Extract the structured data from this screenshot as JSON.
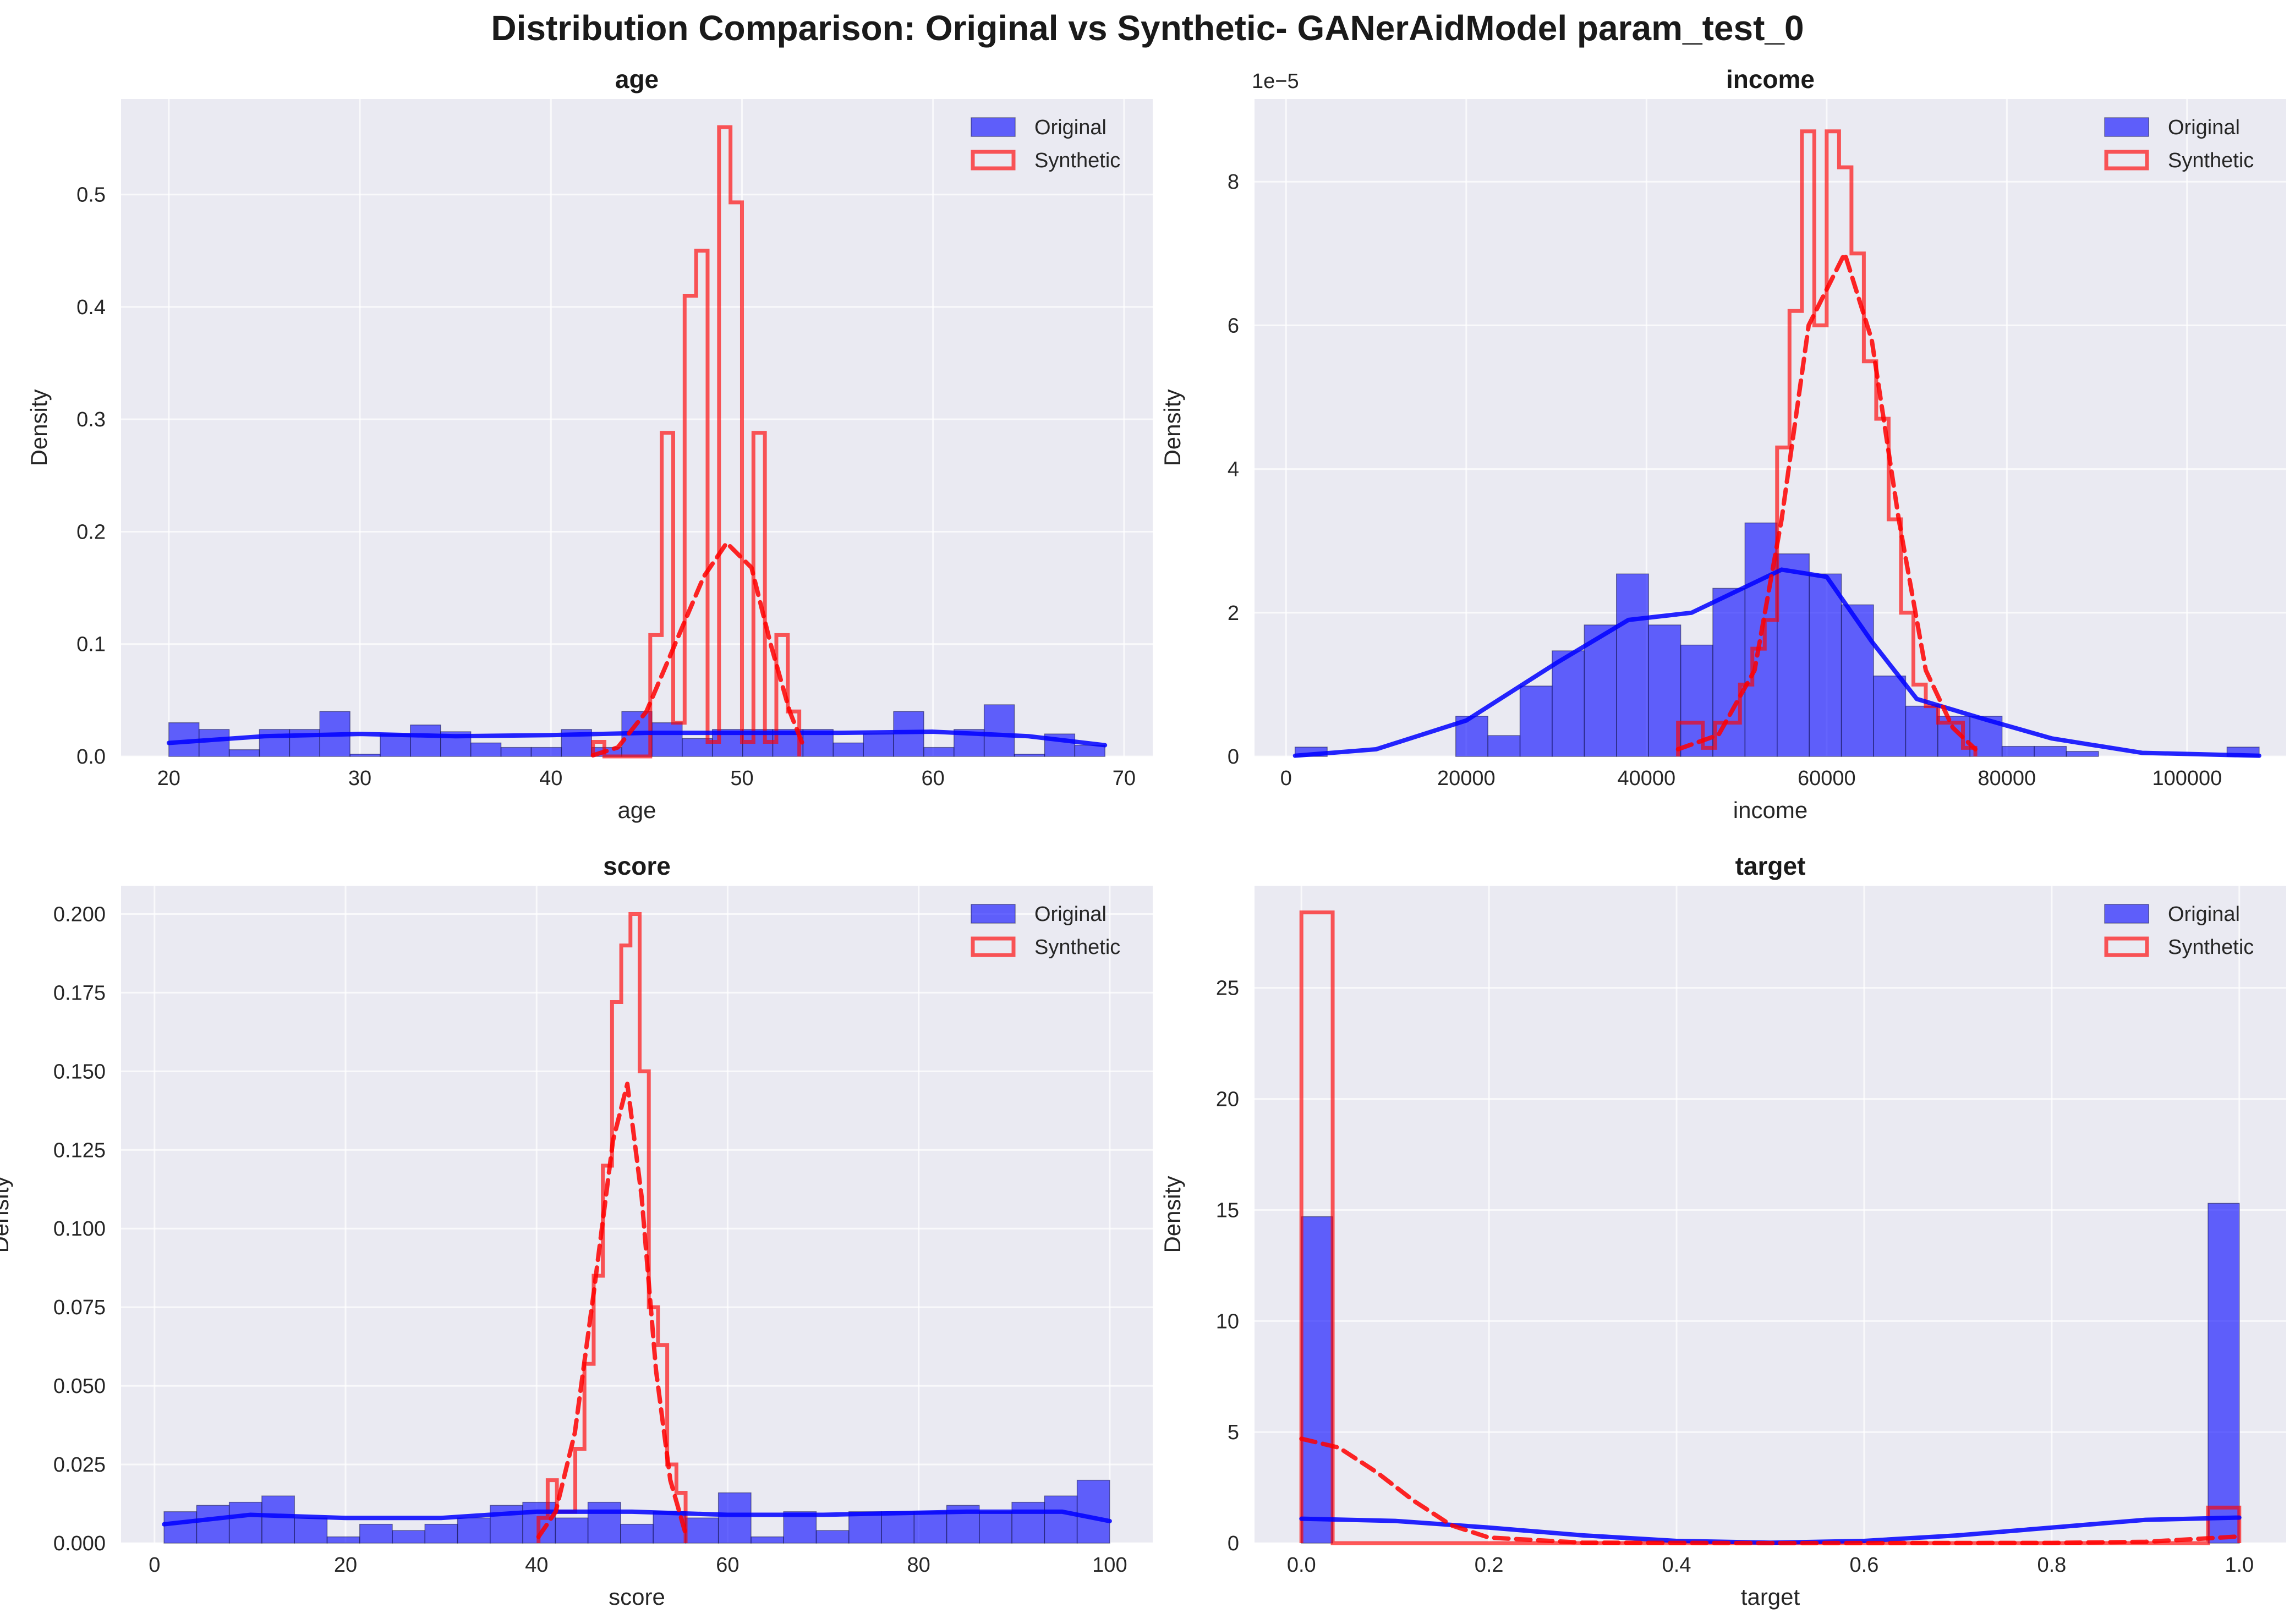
{
  "title": "Distribution Comparison: Original vs Synthetic- GANerAidModel param_test_0",
  "colors": {
    "original": "#0000ff",
    "synthetic": "#ff0000",
    "background": "#eaeaf2"
  },
  "chart_data": [
    {
      "type": "bar",
      "title": "age",
      "xlabel": "age",
      "ylabel": "Density",
      "xlim": [
        17.5,
        71.5
      ],
      "ylim": [
        0,
        0.585
      ],
      "xticks": [
        20,
        30,
        40,
        50,
        60,
        70
      ],
      "yticks": [
        0.0,
        0.1,
        0.2,
        0.3,
        0.4,
        0.5
      ],
      "ytick_labels": [
        "0.0",
        "0.1",
        "0.2",
        "0.3",
        "0.4",
        "0.5"
      ],
      "legend": "top-right",
      "series": [
        {
          "name": "Original",
          "style": "histogram",
          "range": [
            20,
            69
          ],
          "values": [
            0.03,
            0.024,
            0.006,
            0.024,
            0.024,
            0.04,
            0.002,
            0.02,
            0.028,
            0.022,
            0.012,
            0.008,
            0.008,
            0.024,
            0.008,
            0.04,
            0.03,
            0.016,
            0.024,
            0.024,
            0.024,
            0.024,
            0.012,
            0.02,
            0.04,
            0.008,
            0.024,
            0.046,
            0.002,
            0.02,
            0.01
          ],
          "kde": [
            [
              20,
              0.012
            ],
            [
              25,
              0.018
            ],
            [
              30,
              0.02
            ],
            [
              35,
              0.018
            ],
            [
              40,
              0.019
            ],
            [
              45,
              0.021
            ],
            [
              50,
              0.021
            ],
            [
              55,
              0.021
            ],
            [
              60,
              0.022
            ],
            [
              65,
              0.018
            ],
            [
              69,
              0.01
            ]
          ]
        },
        {
          "name": "Synthetic",
          "style": "step",
          "range": [
            42.2,
            53.0
          ],
          "values": [
            0.013,
            0.0,
            0.0,
            0.0,
            0.0,
            0.108,
            0.288,
            0.03,
            0.41,
            0.45,
            0.013,
            0.56,
            0.493,
            0.013,
            0.288,
            0.013,
            0.108,
            0.04
          ],
          "kde": [
            [
              42.2,
              0.001
            ],
            [
              43.5,
              0.008
            ],
            [
              45,
              0.04
            ],
            [
              46.5,
              0.1
            ],
            [
              48,
              0.16
            ],
            [
              49.2,
              0.19
            ],
            [
              50.5,
              0.168
            ],
            [
              51.5,
              0.1
            ],
            [
              52.5,
              0.04
            ],
            [
              53.2,
              0.01
            ]
          ]
        }
      ]
    },
    {
      "type": "bar",
      "title": "income",
      "xlabel": "income",
      "ylabel": "Density",
      "y_offset_label": "1e−5",
      "xlim": [
        -3500,
        111000
      ],
      "ylim": [
        0,
        9.15e-05
      ],
      "xticks": [
        0,
        20000,
        40000,
        60000,
        80000,
        100000
      ],
      "yticks": [
        0,
        2e-05,
        4e-05,
        6e-05,
        8e-05
      ],
      "ytick_labels": [
        "0",
        "2",
        "4",
        "6",
        "8"
      ],
      "legend": "top-right",
      "series": [
        {
          "name": "Original",
          "style": "histogram",
          "range": [
            1000,
            108000
          ],
          "values": [
            1.3e-06,
            0.0,
            0.0,
            0.0,
            0.0,
            5.6e-06,
            2.9e-06,
            9.8e-06,
            1.47e-05,
            1.83e-05,
            2.54e-05,
            1.83e-05,
            1.55e-05,
            2.34e-05,
            3.25e-05,
            2.82e-05,
            2.54e-05,
            2.11e-05,
            1.12e-05,
            7e-06,
            5.6e-06,
            5.6e-06,
            1.4e-06,
            1.4e-06,
            7e-07,
            0.0,
            0.0,
            0.0,
            0.0,
            1.3e-06
          ],
          "kde": [
            [
              1000,
              1e-07
            ],
            [
              10000,
              1e-06
            ],
            [
              20000,
              5e-06
            ],
            [
              30000,
              1.3e-05
            ],
            [
              38000,
              1.9e-05
            ],
            [
              45000,
              2e-05
            ],
            [
              55000,
              2.6e-05
            ],
            [
              60000,
              2.5e-05
            ],
            [
              65000,
              1.6e-05
            ],
            [
              70000,
              8e-06
            ],
            [
              78000,
              5e-06
            ],
            [
              85000,
              2.5e-06
            ],
            [
              95000,
              5e-07
            ],
            [
              108000,
              1e-07
            ]
          ]
        },
        {
          "name": "Synthetic",
          "style": "step",
          "range": [
            43500,
            76500
          ],
          "values": [
            4.7e-06,
            4.7e-06,
            1.2e-06,
            4.7e-06,
            4.7e-06,
            1e-05,
            1.5e-05,
            1.9e-05,
            4.3e-05,
            6.2e-05,
            8.7e-05,
            6e-05,
            8.7e-05,
            8.2e-05,
            7e-05,
            5.5e-05,
            4.7e-05,
            3.3e-05,
            2e-05,
            1e-05,
            7e-06,
            4.7e-06,
            4.7e-06,
            1.2e-06
          ],
          "kde": [
            [
              43500,
              1e-06
            ],
            [
              48000,
              3e-06
            ],
            [
              52000,
              1.2e-05
            ],
            [
              55000,
              3.3e-05
            ],
            [
              58000,
              6e-05
            ],
            [
              62000,
              7e-05
            ],
            [
              65000,
              5.8e-05
            ],
            [
              68000,
              3.3e-05
            ],
            [
              71000,
              1.2e-05
            ],
            [
              74000,
              4e-06
            ],
            [
              76500,
              1e-06
            ]
          ]
        }
      ]
    },
    {
      "type": "bar",
      "title": "score",
      "xlabel": "score",
      "ylabel": "Density",
      "xlim": [
        -3.5,
        104.5
      ],
      "ylim": [
        0,
        0.209
      ],
      "xticks": [
        0,
        20,
        40,
        60,
        80,
        100
      ],
      "yticks": [
        0.0,
        0.025,
        0.05,
        0.075,
        0.1,
        0.125,
        0.15,
        0.175,
        0.2
      ],
      "ytick_labels": [
        "0.000",
        "0.025",
        "0.050",
        "0.075",
        "0.100",
        "0.125",
        "0.150",
        "0.175",
        "0.200"
      ],
      "legend": "top-right",
      "series": [
        {
          "name": "Original",
          "style": "histogram",
          "range": [
            1,
            100
          ],
          "values": [
            0.01,
            0.012,
            0.013,
            0.015,
            0.008,
            0.002,
            0.006,
            0.004,
            0.006,
            0.008,
            0.012,
            0.013,
            0.008,
            0.013,
            0.006,
            0.01,
            0.008,
            0.016,
            0.002,
            0.01,
            0.004,
            0.01,
            0.01,
            0.01,
            0.012,
            0.01,
            0.013,
            0.015,
            0.02
          ],
          "kde": [
            [
              1,
              0.006
            ],
            [
              10,
              0.009
            ],
            [
              20,
              0.008
            ],
            [
              30,
              0.008
            ],
            [
              40,
              0.01
            ],
            [
              50,
              0.01
            ],
            [
              60,
              0.009
            ],
            [
              70,
              0.009
            ],
            [
              85,
              0.01
            ],
            [
              95,
              0.01
            ],
            [
              100,
              0.007
            ]
          ]
        },
        {
          "name": "Synthetic",
          "style": "step",
          "range": [
            40.2,
            55.6
          ],
          "values": [
            0.008,
            0.02,
            0.01,
            0.01,
            0.03,
            0.057,
            0.085,
            0.12,
            0.172,
            0.19,
            0.2,
            0.15,
            0.075,
            0.063,
            0.025,
            0.016
          ],
          "kde": [
            [
              40.2,
              0.002
            ],
            [
              42,
              0.01
            ],
            [
              44,
              0.035
            ],
            [
              46,
              0.08
            ],
            [
              48,
              0.128
            ],
            [
              49.5,
              0.146
            ],
            [
              51,
              0.11
            ],
            [
              52.5,
              0.055
            ],
            [
              54,
              0.02
            ],
            [
              55.6,
              0.003
            ]
          ]
        }
      ]
    },
    {
      "type": "bar",
      "title": "target",
      "xlabel": "target",
      "ylabel": "Density",
      "xlim": [
        -0.05,
        1.05
      ],
      "ylim": [
        0,
        29.6
      ],
      "xticks": [
        0.0,
        0.2,
        0.4,
        0.6,
        0.8,
        1.0
      ],
      "xtick_labels": [
        "0.0",
        "0.2",
        "0.4",
        "0.6",
        "0.8",
        "1.0"
      ],
      "yticks": [
        0,
        5,
        10,
        15,
        20,
        25
      ],
      "legend": "top-right",
      "series": [
        {
          "name": "Original",
          "style": "histogram",
          "range": [
            0,
            1
          ],
          "values": [
            14.7,
            0,
            0,
            0,
            0,
            0,
            0,
            0,
            0,
            0,
            0,
            0,
            0,
            0,
            0,
            0,
            0,
            0,
            0,
            0,
            0,
            0,
            0,
            0,
            0,
            0,
            0,
            0,
            0,
            15.3
          ],
          "kde": [
            [
              0,
              1.1
            ],
            [
              0.1,
              1.0
            ],
            [
              0.2,
              0.7
            ],
            [
              0.3,
              0.35
            ],
            [
              0.4,
              0.1
            ],
            [
              0.5,
              0.02
            ],
            [
              0.6,
              0.1
            ],
            [
              0.7,
              0.35
            ],
            [
              0.8,
              0.7
            ],
            [
              0.9,
              1.05
            ],
            [
              1.0,
              1.15
            ]
          ]
        },
        {
          "name": "Synthetic",
          "style": "step",
          "range": [
            0,
            1
          ],
          "values": [
            28.4,
            0,
            0,
            0,
            0,
            0,
            0,
            0,
            0,
            0,
            0,
            0,
            0,
            0,
            0,
            0,
            0,
            0,
            0,
            0,
            0,
            0,
            0,
            0,
            0,
            0,
            0,
            0,
            0,
            1.6
          ],
          "kde": [
            [
              0,
              4.7
            ],
            [
              0.04,
              4.3
            ],
            [
              0.08,
              3.2
            ],
            [
              0.12,
              1.9
            ],
            [
              0.16,
              0.8
            ],
            [
              0.2,
              0.25
            ],
            [
              0.3,
              0.02
            ],
            [
              0.5,
              0.0
            ],
            [
              0.8,
              0.01
            ],
            [
              0.9,
              0.06
            ],
            [
              0.96,
              0.2
            ],
            [
              1.0,
              0.3
            ]
          ]
        }
      ]
    }
  ]
}
